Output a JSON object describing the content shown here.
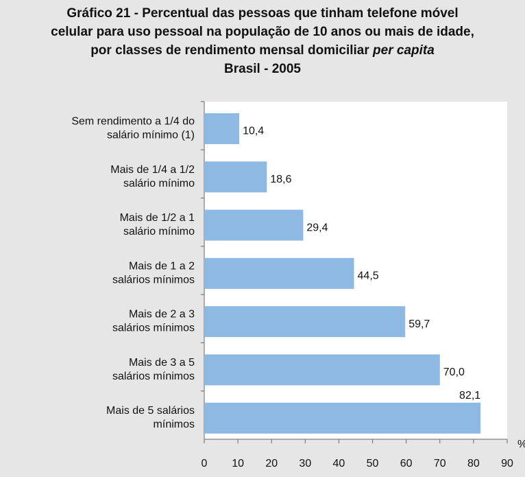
{
  "chart_data": {
    "type": "barh",
    "title": [
      "Gráfico 21 - Percentual das pessoas que tinham telefone móvel",
      "celular para uso pessoal na população de 10 anos ou mais de idade,",
      "por classes de rendimento mensal domiciliar",
      "Brasil - 2005"
    ],
    "title_emphasis": "per capita",
    "categories": [
      [
        "Sem rendimento a 1/4 do",
        "salário mínimo (1)"
      ],
      [
        "Mais de 1/4 a 1/2",
        "salário mínimo"
      ],
      [
        "Mais de 1/2 a 1",
        "salário mínimo"
      ],
      [
        "Mais de 1 a 2",
        "salários mínimos"
      ],
      [
        "Mais de 2 a 3",
        "salários mínimos"
      ],
      [
        "Mais de 3 a 5",
        "salários mínimos"
      ],
      [
        "Mais de 5 salários",
        "mínimos"
      ]
    ],
    "values": [
      10.4,
      18.6,
      29.4,
      44.5,
      59.7,
      70.0,
      82.1
    ],
    "value_labels": [
      "10,4",
      "18,6",
      "29,4",
      "44,5",
      "59,7",
      "70,0",
      "82,1"
    ],
    "color": "#8db9e3",
    "xlim": [
      0,
      90
    ],
    "xticks": [
      0,
      10,
      20,
      30,
      40,
      50,
      60,
      70,
      80,
      90
    ],
    "unit_label": "%"
  }
}
